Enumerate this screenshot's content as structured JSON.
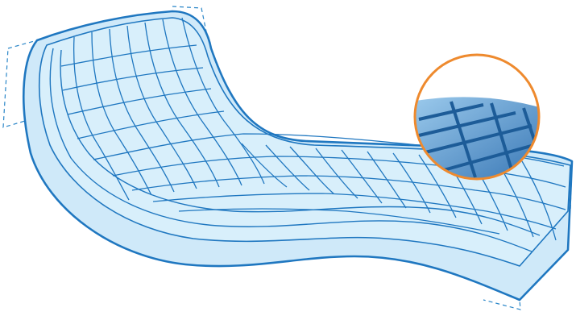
{
  "illustration": {
    "subject": "mattress-foam-zone-diagram",
    "colors": {
      "outline": "#1f77c0",
      "fill_light": "#cfe9f9",
      "fill_top": "#d8effb",
      "dashed": "#2a86c8",
      "grid": "#1f77c0",
      "magnifier_ring": "#ee8a2e",
      "magnifier_fill_deep": "#2f6fb0",
      "magnifier_fill_light": "#7fb7e2"
    }
  }
}
